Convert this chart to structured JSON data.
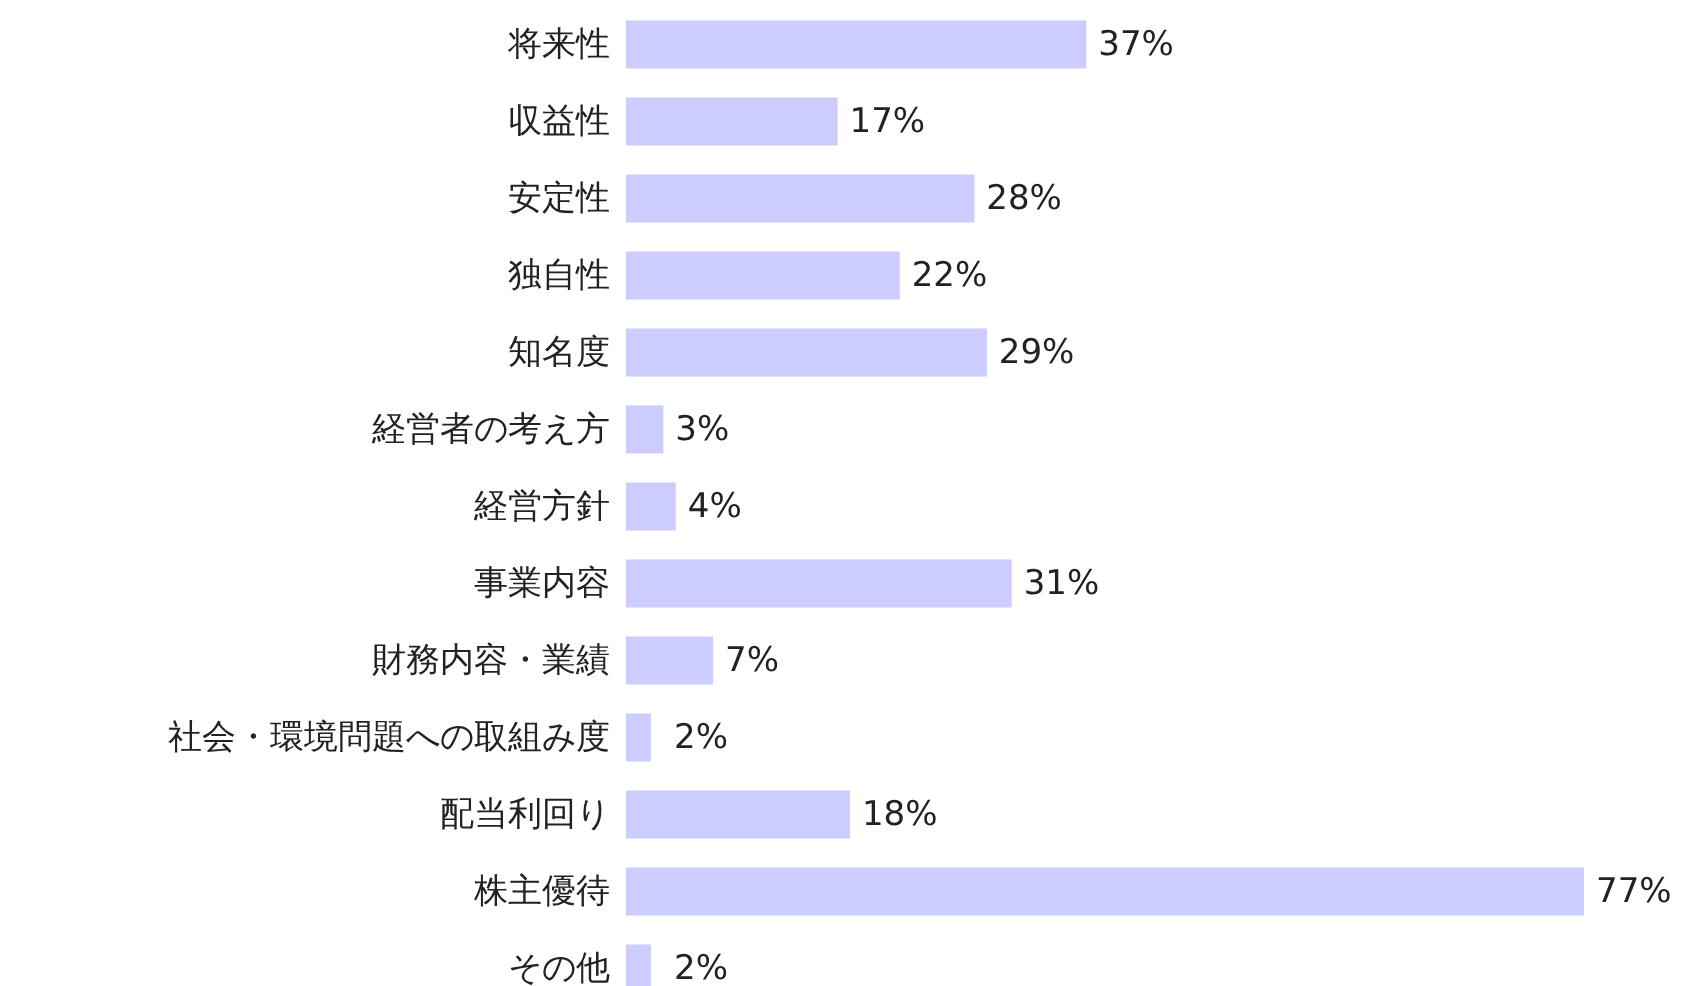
{
  "chart_data": {
    "type": "bar",
    "orientation": "horizontal",
    "color": "#ccccff",
    "categories": [
      "将来性",
      "収益性",
      "安定性",
      "独自性",
      "知名度",
      "経営者の考え方",
      "経営方針",
      "事業内容",
      "財務内容・業績",
      "社会・環境問題への取組み度",
      "配当利回り",
      "株主優待",
      "その他"
    ],
    "values": [
      37,
      17,
      28,
      22,
      29,
      3,
      4,
      31,
      7,
      2,
      18,
      77,
      2
    ],
    "value_labels": [
      "37%",
      "17%",
      "28%",
      "22%",
      "29%",
      "3%",
      "4%",
      "31%",
      "7%",
      "2%",
      "18%",
      "77%",
      "2%"
    ]
  }
}
